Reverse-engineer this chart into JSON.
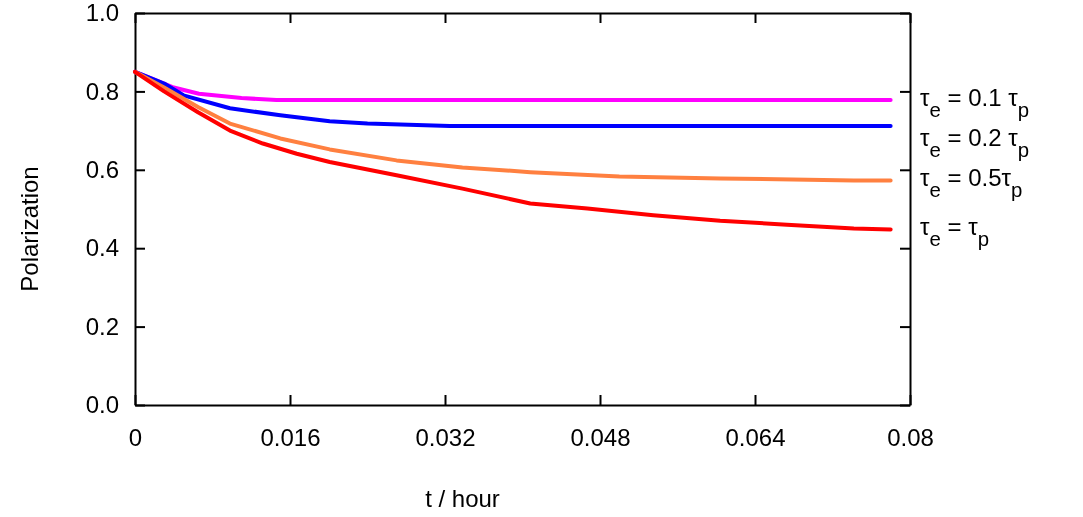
{
  "chart_data": {
    "type": "line",
    "xlabel": "t / hour",
    "ylabel": "Polarization",
    "xlim": [
      0,
      0.08
    ],
    "ylim": [
      0,
      1
    ],
    "xticks": [
      0,
      0.016,
      0.032,
      0.048,
      0.064,
      0.08
    ],
    "yticks": [
      {
        "value": 0,
        "label": "0.0"
      },
      0.2,
      0.4,
      0.6,
      0.8,
      {
        "value": 1,
        "label": "1.0"
      }
    ],
    "grid": false,
    "marker": "none",
    "line_style": "solid",
    "series": [
      {
        "name": "τ$_{e}$ = 0.1 τ$_{p}$",
        "color": "#ff00ff",
        "x": [
          0,
          0.002,
          0.004,
          0.0066,
          0.011,
          0.0146,
          0.03,
          0.05,
          0.078
        ],
        "values": [
          0.85,
          0.83,
          0.81,
          0.794,
          0.783,
          0.778,
          0.778,
          0.778,
          0.778
        ]
      },
      {
        "name": "τ$_{e}$ = 0.2 τ$_{p}$",
        "color": "#0000ff",
        "x": [
          0,
          0.003,
          0.005,
          0.0098,
          0.015,
          0.0201,
          0.024,
          0.0325,
          0.05,
          0.078
        ],
        "values": [
          0.85,
          0.82,
          0.79,
          0.757,
          0.739,
          0.724,
          0.718,
          0.712,
          0.712,
          0.712
        ]
      },
      {
        "name": "τ$_{e}$ = 0.5τ$_{p}$",
        "color": "#ff8040",
        "x": [
          0,
          0.003,
          0.0065,
          0.0098,
          0.015,
          0.0201,
          0.027,
          0.0338,
          0.0408,
          0.05,
          0.0604,
          0.0742,
          0.078
        ],
        "values": [
          0.85,
          0.81,
          0.76,
          0.718,
          0.68,
          0.652,
          0.624,
          0.606,
          0.594,
          0.583,
          0.578,
          0.573,
          0.573
        ]
      },
      {
        "name": "τ$_{e}$ = τ$_{p}$",
        "color": "#ff0000",
        "x": [
          0,
          0.003,
          0.0065,
          0.0098,
          0.0132,
          0.0167,
          0.0201,
          0.027,
          0.0338,
          0.0408,
          0.0467,
          0.0535,
          0.0604,
          0.0673,
          0.0742,
          0.078
        ],
        "values": [
          0.85,
          0.8,
          0.747,
          0.7,
          0.667,
          0.641,
          0.62,
          0.586,
          0.552,
          0.514,
          0.501,
          0.484,
          0.47,
          0.46,
          0.45,
          0.448
        ]
      }
    ]
  }
}
